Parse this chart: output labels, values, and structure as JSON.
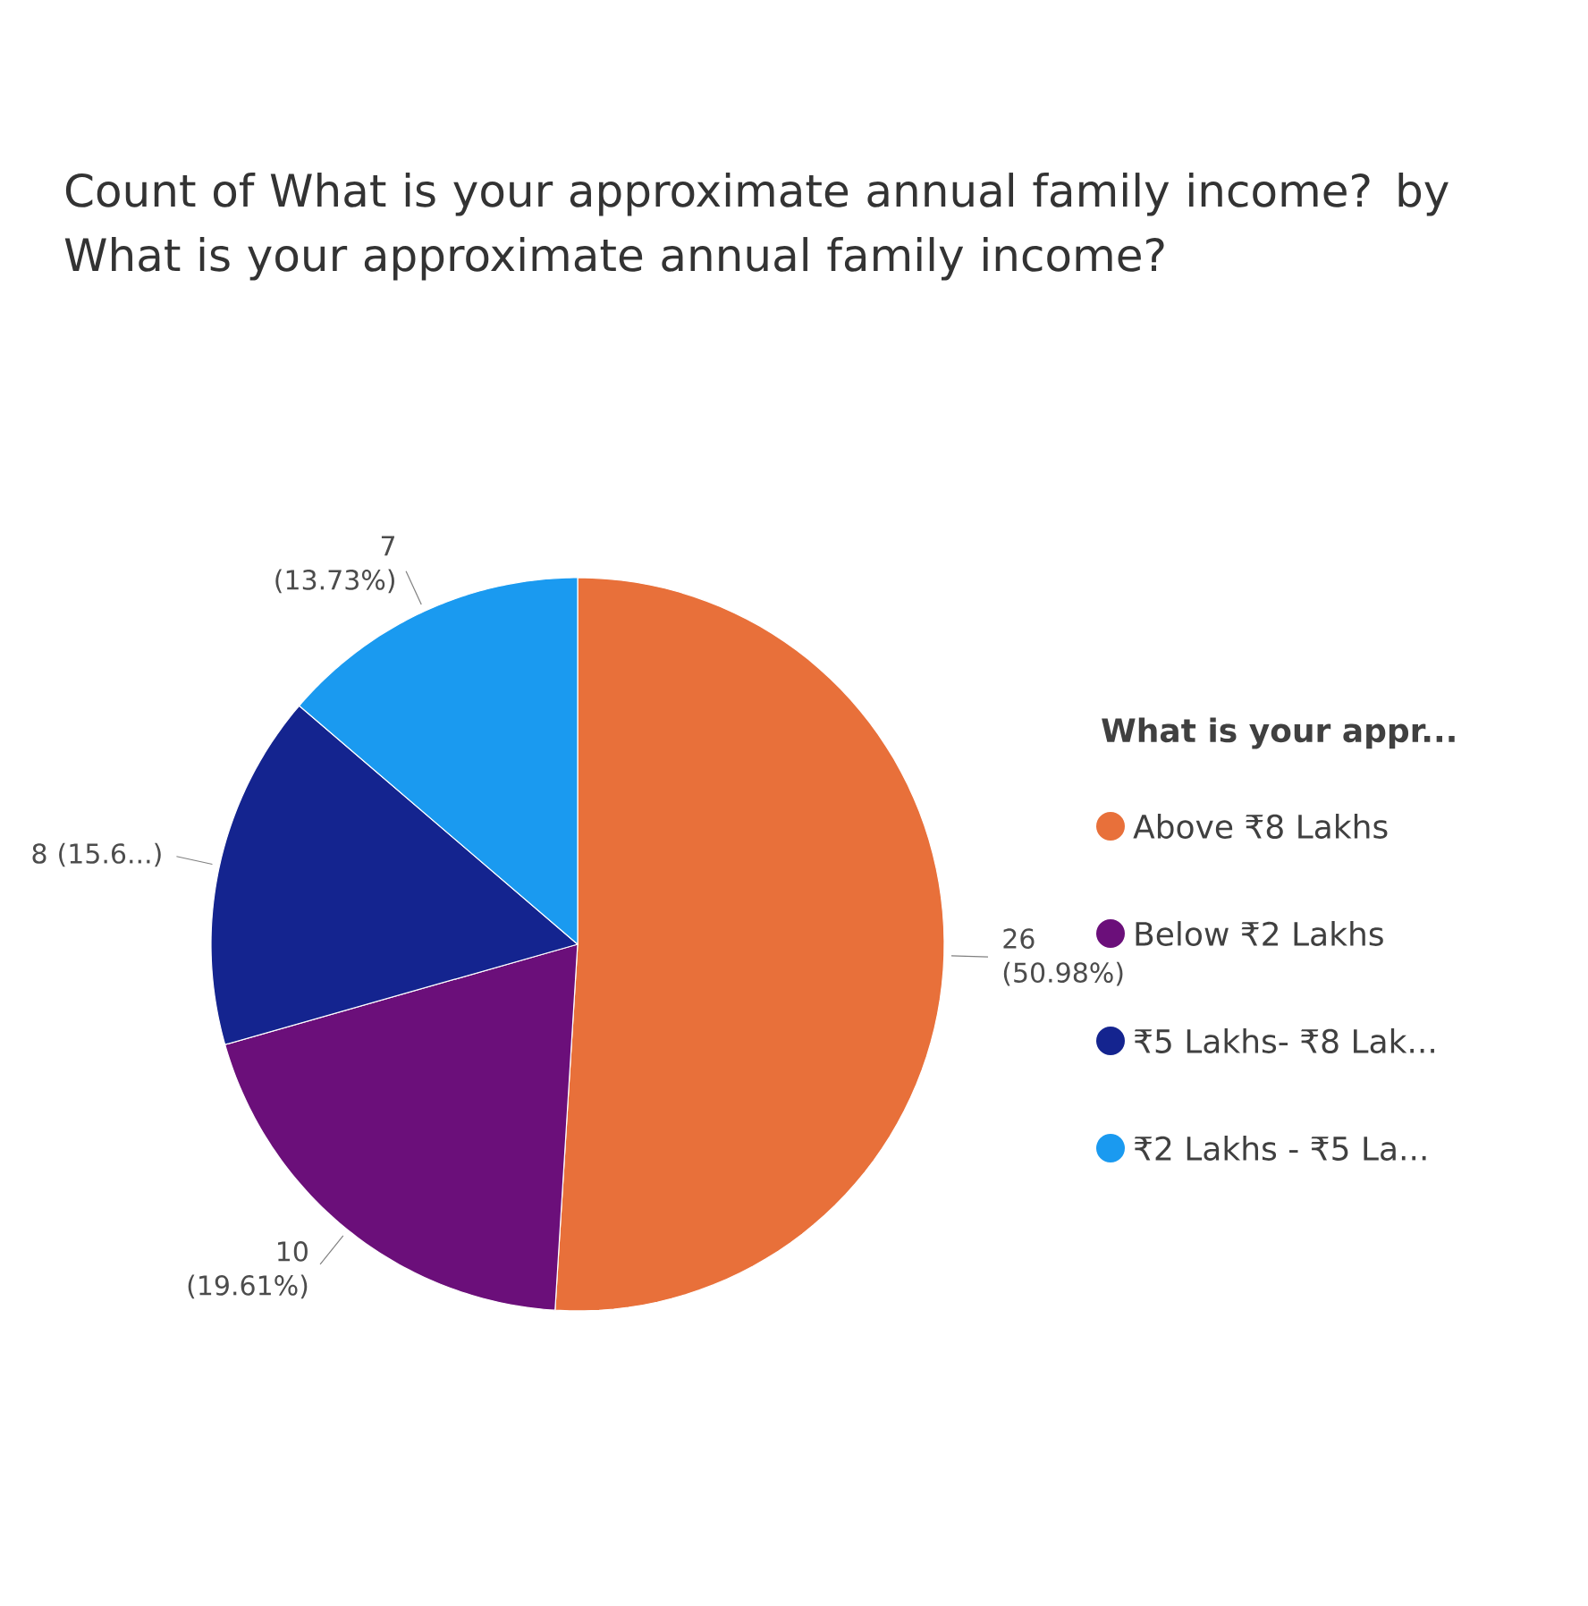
{
  "chart_data": {
    "type": "pie",
    "title": "Count of What is your approximate annual family income? by What is your approximate annual family income?",
    "categories": [
      "Above ₹8 Lakhs",
      "Below ₹2 Lakhs",
      "₹5 Lakhs- ₹8 Lak...",
      "₹2 Lakhs - ₹5 La..."
    ],
    "values": [
      26,
      10,
      8,
      7
    ],
    "colors": [
      "#e8703a",
      "#6b0f7a",
      "#14248f",
      "#1a9af0"
    ],
    "value_labels": [
      "26 (50.98%)",
      "10 (19.61%)",
      "8 (15.6...)",
      "7 (13.73%)"
    ],
    "legend_title": "What is your appr...",
    "legend": "right"
  }
}
